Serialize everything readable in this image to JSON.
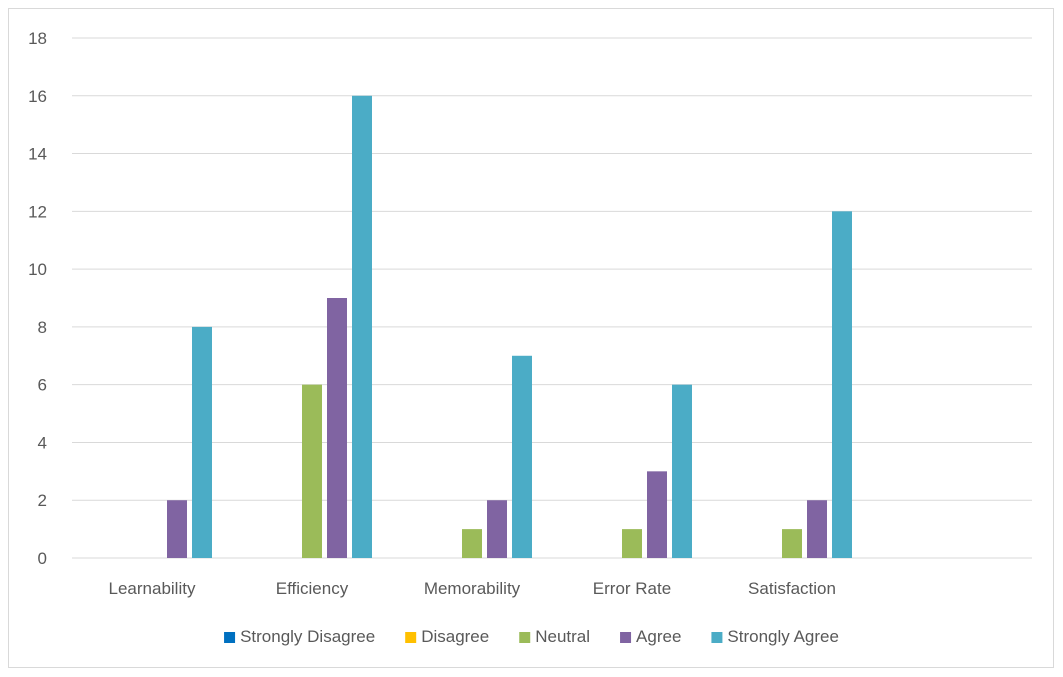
{
  "chart_data": {
    "type": "bar",
    "categories": [
      "Learnability",
      "Efficiency",
      "Memorability",
      "Error Rate",
      "Satisfaction",
      ""
    ],
    "series": [
      {
        "name": "Strongly Disagree",
        "color": "#0070c0",
        "values": [
          0,
          0,
          0,
          0,
          0,
          0
        ]
      },
      {
        "name": "Disagree",
        "color": "#ffc000",
        "values": [
          0,
          0,
          0,
          0,
          0,
          0
        ]
      },
      {
        "name": "Neutral",
        "color": "#9bbb59",
        "values": [
          0,
          6,
          1,
          1,
          1,
          0
        ]
      },
      {
        "name": "Agree",
        "color": "#8064a2",
        "values": [
          2,
          9,
          2,
          3,
          2,
          0
        ]
      },
      {
        "name": "Strongly Agree",
        "color": "#4bacc6",
        "values": [
          8,
          16,
          7,
          6,
          12,
          0
        ]
      }
    ],
    "ylim": [
      0,
      18
    ],
    "yticks": [
      0,
      2,
      4,
      6,
      8,
      10,
      12,
      14,
      16,
      18
    ],
    "grid": true,
    "legend_position": "bottom",
    "title": "",
    "xlabel": "",
    "ylabel": ""
  }
}
